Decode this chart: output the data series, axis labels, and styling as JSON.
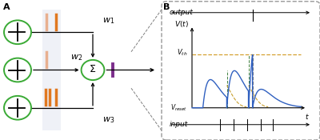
{
  "fig_width": 4.0,
  "fig_height": 1.75,
  "dpi": 100,
  "panel_A_label": "A",
  "panel_B_label": "B",
  "neuron_circle_color": "#3aaa35",
  "neuron_circle_lw": 1.4,
  "spike_color_orange": "#e07820",
  "spike_color_light_orange": "#e8b090",
  "spike_color_purple": "#7b2d8b",
  "bg_gray": "#dde0ee",
  "output_label": "output",
  "input_label": "input",
  "dashed_box_color": "#999999",
  "blue_trace": "#3060c0",
  "orange_dash": "#c8a030",
  "gray_dash": "#808080"
}
